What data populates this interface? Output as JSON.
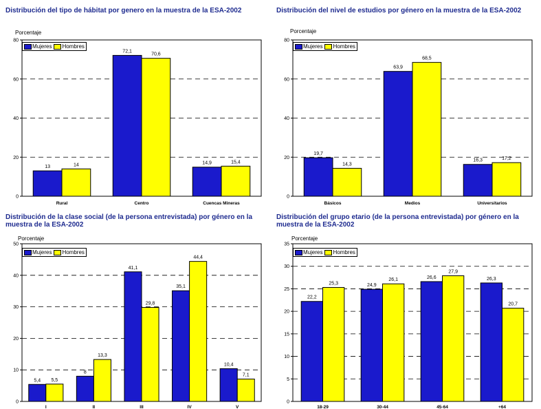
{
  "colors": {
    "mujeres": "#1a1acc",
    "hombres": "#ffff00",
    "title": "#1e2b8f"
  },
  "legend": [
    "Mujeres",
    "Hombres"
  ],
  "chart_data": [
    {
      "type": "bar",
      "title": "Distribución del tipo de hábitat por genero en la muestra de la ESA-2002",
      "ylabel": "Porcentaje",
      "ylim": [
        0,
        80
      ],
      "yticks": [
        0,
        20,
        40,
        60,
        80
      ],
      "categories": [
        "Rural",
        "Centro",
        "Cuencas Mineras"
      ],
      "series": [
        {
          "name": "Mujeres",
          "values": [
            13,
            72.1,
            14.9
          ],
          "labels": [
            "13",
            "72,1",
            "14,9"
          ]
        },
        {
          "name": "Hombres",
          "values": [
            14,
            70.6,
            15.4
          ],
          "labels": [
            "14",
            "70,6",
            "15,4"
          ]
        }
      ],
      "grid": true,
      "legend_position": "top-left"
    },
    {
      "type": "bar",
      "title": "Distribución del nivel de estudios por género en la muestra de la ESA-2002",
      "ylabel": "Porcentaje",
      "ylim": [
        0,
        80
      ],
      "yticks": [
        0,
        20,
        40,
        60,
        80
      ],
      "categories": [
        "Básicos",
        "Medios",
        "Universitarios"
      ],
      "series": [
        {
          "name": "Mujeres",
          "values": [
            19.7,
            63.9,
            16.3
          ],
          "labels": [
            "19,7",
            "63,9",
            "16,3"
          ]
        },
        {
          "name": "Hombres",
          "values": [
            14.3,
            68.5,
            17.2
          ],
          "labels": [
            "14,3",
            "68,5",
            "17,2"
          ]
        }
      ],
      "grid": true,
      "legend_position": "top-left"
    },
    {
      "type": "bar",
      "title": "Distribución de la  clase social (de la persona entrevistada) por género en la muestra de la ESA-2002",
      "ylabel": "Porcentaje",
      "ylim": [
        0,
        50
      ],
      "yticks": [
        0,
        10,
        20,
        30,
        40,
        50
      ],
      "categories": [
        "I",
        "II",
        "III",
        "IV",
        "V"
      ],
      "series": [
        {
          "name": "Mujeres",
          "values": [
            5.4,
            8,
            41.1,
            35.1,
            10.4
          ],
          "labels": [
            "5,4",
            "8",
            "41,1",
            "35,1",
            "10,4"
          ]
        },
        {
          "name": "Hombres",
          "values": [
            5.5,
            13.3,
            29.8,
            44.4,
            7.1
          ],
          "labels": [
            "5,5",
            "13,3",
            "29,8",
            "44,4",
            "7,1"
          ]
        }
      ],
      "grid": true,
      "legend_position": "top-left"
    },
    {
      "type": "bar",
      "title": "Distribución del grupo etario (de la persona entrevistada) por género en la muestra de la ESA-2002",
      "ylabel": "Porcentaje",
      "ylim": [
        0,
        35
      ],
      "yticks": [
        0,
        5,
        10,
        15,
        20,
        25,
        30,
        35
      ],
      "categories": [
        "18-29",
        "30-44",
        "45-64",
        "+64"
      ],
      "series": [
        {
          "name": "Mujeres",
          "values": [
            22.2,
            24.9,
            26.6,
            26.3
          ],
          "labels": [
            "22,2",
            "24,9",
            "26,6",
            "26,3"
          ]
        },
        {
          "name": "Hombres",
          "values": [
            25.3,
            26.1,
            27.9,
            20.7
          ],
          "labels": [
            "25,3",
            "26,1",
            "27,9",
            "20,7"
          ]
        }
      ],
      "grid": true,
      "legend_position": "top-left"
    }
  ]
}
